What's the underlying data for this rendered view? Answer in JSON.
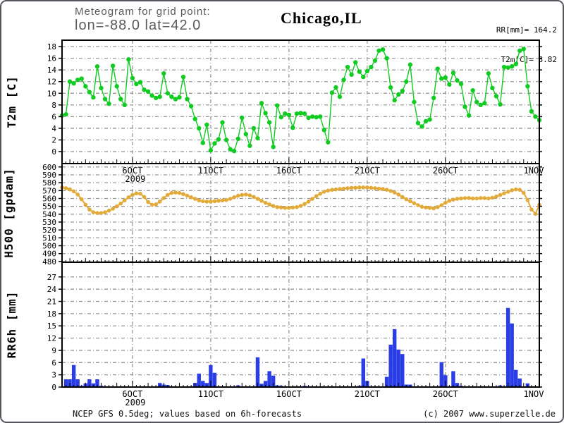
{
  "header": {
    "subtitle": "Meteogram for grid point:",
    "coords": "lon=-88.0 lat=42.0",
    "station": "Chicago,IL",
    "totals": {
      "rr": "RR[mm]= 164.2",
      "t2m": "T2m[C]= 8.82"
    }
  },
  "footer": {
    "source": "NCEP GFS 0.5deg; values based on 6h-forecasts",
    "copyright": "(c) 2007 www.superzelle.de"
  },
  "colors": {
    "t2m": "#10cc21",
    "h500": "#e2aa38",
    "rr6h": "#2b3ee6",
    "grid": "#999999",
    "axis": "#000000"
  },
  "chart_data": {
    "type": "meteogram",
    "x": {
      "n_steps": 123,
      "step_hours": 6,
      "minor_tick_every_steps": 1,
      "daily_tick_mod": 2,
      "major_ticks": [
        {
          "step": 18,
          "label": "6OCT",
          "sublabel": "2009"
        },
        {
          "step": 38,
          "label": "11OCT"
        },
        {
          "step": 58,
          "label": "16OCT"
        },
        {
          "step": 78,
          "label": "21OCT"
        },
        {
          "step": 98,
          "label": "26OCT"
        },
        {
          "step": 122,
          "label": "1NOV"
        }
      ]
    },
    "panels": [
      {
        "id": "t2m",
        "type": "line",
        "ylabel": "T2m [C]",
        "yticks": [
          0,
          2,
          4,
          6,
          8,
          10,
          12,
          14,
          16,
          18
        ],
        "ylim": [
          -2.05,
          19.1
        ],
        "color_key": "t2m",
        "values": [
          6.2,
          6.4,
          12.0,
          11.7,
          12.3,
          12.5,
          11.2,
          10.2,
          9.3,
          14.6,
          10.9,
          9.0,
          8.2,
          14.7,
          11.2,
          9.0,
          8.0,
          15.8,
          12.6,
          11.6,
          11.9,
          10.6,
          10.3,
          9.6,
          9.2,
          9.4,
          13.4,
          10.0,
          9.4,
          9.0,
          9.3,
          12.8,
          9.0,
          7.8,
          5.6,
          4.0,
          1.5,
          4.6,
          0.2,
          1.4,
          2.1,
          5.0,
          2.0,
          0.4,
          0.1,
          2.2,
          5.8,
          3.0,
          1.0,
          4.0,
          2.3,
          8.3,
          6.6,
          5.0,
          0.8,
          7.9,
          5.9,
          6.5,
          6.3,
          4.1,
          6.5,
          6.6,
          6.5,
          5.8,
          6.0,
          5.9,
          6.0,
          3.7,
          1.6,
          10.1,
          11.0,
          9.4,
          12.3,
          14.5,
          13.2,
          15.3,
          13.7,
          12.8,
          13.8,
          14.5,
          15.6,
          17.3,
          17.5,
          16.0,
          11.0,
          8.8,
          9.8,
          10.4,
          12.0,
          14.9,
          8.5,
          4.9,
          4.3,
          5.2,
          5.5,
          9.2,
          14.2,
          12.5,
          12.7,
          11.5,
          13.5,
          12.2,
          11.6,
          7.7,
          6.2,
          10.5,
          8.5,
          8.0,
          8.3,
          13.4,
          10.9,
          9.5,
          8.1,
          14.5,
          14.4,
          14.6,
          15.0,
          17.3,
          17.6,
          11.2,
          6.9,
          6.0,
          5.4
        ]
      },
      {
        "id": "h500",
        "type": "line",
        "ylabel": "H500 [gpdam]",
        "yticks": [
          480,
          490,
          500,
          510,
          520,
          530,
          540,
          550,
          560,
          570,
          580,
          590,
          600
        ],
        "ylim": [
          479,
          604.3
        ],
        "color_key": "h500",
        "values": [
          574,
          573,
          571.5,
          569,
          565,
          559,
          552,
          546,
          542.5,
          541.5,
          541.5,
          542.5,
          544.5,
          547,
          550,
          553.5,
          557.5,
          561.5,
          564.5,
          566.5,
          566,
          562,
          555.5,
          552,
          552.5,
          556,
          560.5,
          564.5,
          567,
          567.5,
          567,
          565.5,
          563.5,
          561.5,
          559.5,
          557.5,
          556.5,
          556,
          556,
          556.5,
          557,
          557.5,
          558,
          559.5,
          561.5,
          563.5,
          564.5,
          565,
          564,
          562,
          559.5,
          557,
          554.5,
          552.5,
          550.5,
          549,
          548.5,
          548,
          548,
          548.5,
          549,
          550.5,
          553,
          556,
          559.5,
          563,
          566,
          568.5,
          570,
          571,
          571.5,
          572,
          572.5,
          573,
          573.5,
          573.5,
          574,
          574,
          574,
          573.5,
          573,
          572.5,
          572,
          571,
          569.5,
          567.5,
          565,
          562,
          559,
          556.5,
          554,
          551.5,
          549.5,
          548.5,
          548,
          547.5,
          549,
          551.5,
          554.5,
          557,
          558.5,
          559.5,
          560,
          560.5,
          560.5,
          560,
          560,
          560.5,
          560.5,
          560,
          561,
          562.5,
          564.5,
          566.5,
          568.5,
          570.5,
          571.5,
          571,
          567,
          558,
          546,
          540.5,
          552
        ]
      },
      {
        "id": "rr6h",
        "type": "bar",
        "ylabel": "RR6h [mm]",
        "yticks": [
          0,
          3,
          6,
          9,
          12,
          15,
          18,
          21,
          24,
          27
        ],
        "ylim": [
          0,
          30.6
        ],
        "color_key": "rr6h",
        "values": [
          0,
          1.9,
          1.9,
          5.4,
          1.9,
          0.3,
          0.9,
          1.9,
          0.9,
          1.9,
          0.3,
          0,
          0,
          0,
          0,
          0,
          0,
          0,
          0,
          0,
          0,
          0,
          0,
          0,
          0,
          1.0,
          0.6,
          0.5,
          0,
          0,
          0,
          0,
          0,
          0,
          1.0,
          3.3,
          1.5,
          1.0,
          5.4,
          3.5,
          0,
          0,
          0,
          0,
          0,
          0.4,
          0,
          0,
          0,
          0,
          7.3,
          0.8,
          1.5,
          3.9,
          2.8,
          0.4,
          0.3,
          0,
          0,
          0,
          0,
          0,
          0.3,
          0,
          0,
          0,
          0,
          0,
          0,
          0,
          0,
          0,
          0,
          0,
          0,
          0,
          0.3,
          7.0,
          1.5,
          0,
          0,
          0,
          0,
          2.5,
          10.4,
          14.2,
          9.2,
          8.1,
          0.6,
          0.6,
          0,
          0,
          0,
          0,
          0,
          0,
          0,
          6.1,
          2.9,
          0,
          3.9,
          1.0,
          0.3,
          0,
          0,
          0,
          0,
          0,
          0,
          0,
          0,
          0,
          0.4,
          0,
          19.4,
          15.6,
          4.2,
          2.1,
          0,
          0.9,
          0,
          0,
          0
        ]
      }
    ]
  }
}
